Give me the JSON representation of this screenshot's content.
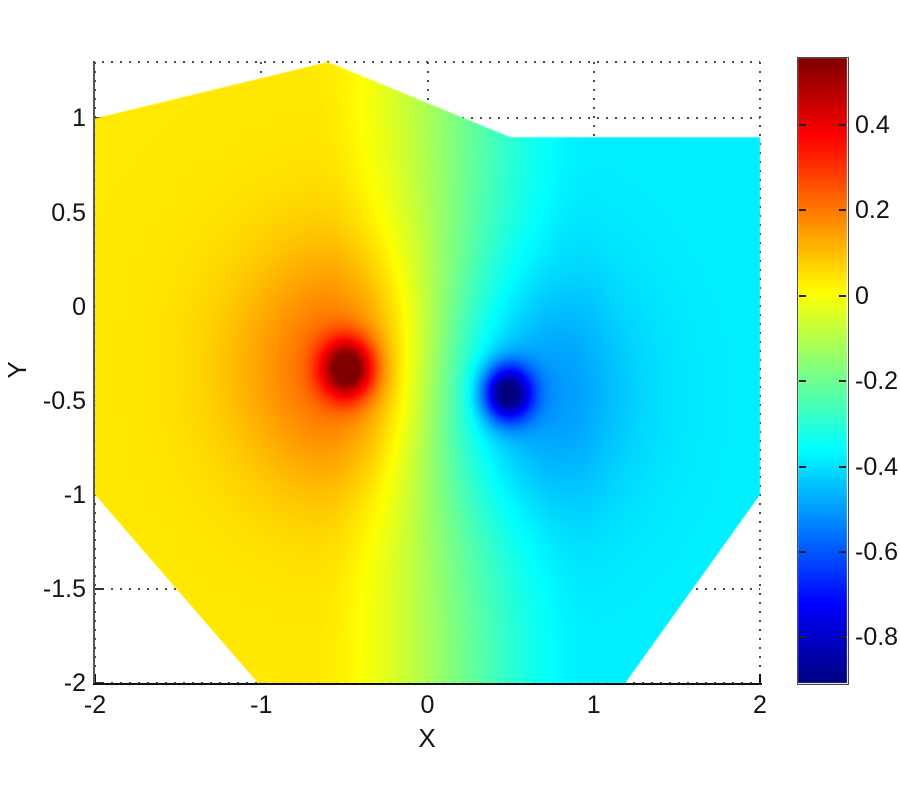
{
  "chart_data": {
    "type": "heatmap",
    "description": "Interpolated scalar field over convex hull of scattered points, jet colormap, dipole-like field with one positive (red) and one negative (blue) pole",
    "xlabel": "X",
    "ylabel": "Y",
    "xlim": [
      -2,
      2
    ],
    "ylim": [
      -2,
      1.3
    ],
    "grid": true,
    "colormap": "jet",
    "xticks": [
      {
        "v": -2,
        "label": "-2"
      },
      {
        "v": -1,
        "label": "-1"
      },
      {
        "v": 0,
        "label": "0"
      },
      {
        "v": 1,
        "label": "1"
      },
      {
        "v": 2,
        "label": "2"
      }
    ],
    "yticks": [
      {
        "v": 1,
        "label": "1"
      },
      {
        "v": 0.5,
        "label": "0.5"
      },
      {
        "v": 0,
        "label": "0"
      },
      {
        "v": -0.5,
        "label": "-0.5"
      },
      {
        "v": -1,
        "label": "-1"
      },
      {
        "v": -1.5,
        "label": "-1.5"
      },
      {
        "v": -2,
        "label": "-2"
      }
    ],
    "colorbar": {
      "clim": [
        -0.907,
        0.557
      ],
      "ticks": [
        {
          "v": 0.4,
          "label": "0.4"
        },
        {
          "v": 0.2,
          "label": "0.2"
        },
        {
          "v": 0,
          "label": "0"
        },
        {
          "v": -0.2,
          "label": "-0.2"
        },
        {
          "v": -0.4,
          "label": "-0.4"
        },
        {
          "v": -0.6,
          "label": "-0.6"
        },
        {
          "v": -0.8,
          "label": "-0.8"
        }
      ]
    },
    "hull": [
      [
        -2,
        1
      ],
      [
        -0.6,
        1.3
      ],
      [
        0.5,
        0.9
      ],
      [
        2,
        0.9
      ],
      [
        2,
        -1
      ],
      [
        1.19,
        -2
      ],
      [
        -1.02,
        -2
      ],
      [
        -2,
        -1
      ]
    ],
    "poles": [
      {
        "x": -0.48,
        "y": -0.33,
        "value": 0.557,
        "name": "positive-pole-red"
      },
      {
        "x": 0.48,
        "y": -0.46,
        "value": -0.907,
        "name": "negative-pole-blue"
      }
    ],
    "field_model": {
      "ambient": {
        "v_left": 0.04,
        "v_right": -0.38,
        "ramp_start": -0.7,
        "ramp_end": 1.0
      },
      "spikes": [
        {
          "x": -0.48,
          "y": -0.33,
          "amp": 0.45,
          "sigma": 0.16
        },
        {
          "x": -0.48,
          "y": -0.33,
          "amp": 0.2,
          "sigma": 0.65
        },
        {
          "x": 0.48,
          "y": -0.46,
          "amp": -0.52,
          "sigma": 0.15
        },
        {
          "x": 0.48,
          "y": -0.46,
          "amp": -0.18,
          "sigma": 0.65
        }
      ]
    },
    "colors": {
      "axis_line_y": "#555555",
      "axis_line_x": "#111111",
      "grid_dots": "#4a4a4a",
      "text": "#141414",
      "background": "#ffffff",
      "jet_min": "#000080",
      "jet_max": "#800000"
    }
  }
}
